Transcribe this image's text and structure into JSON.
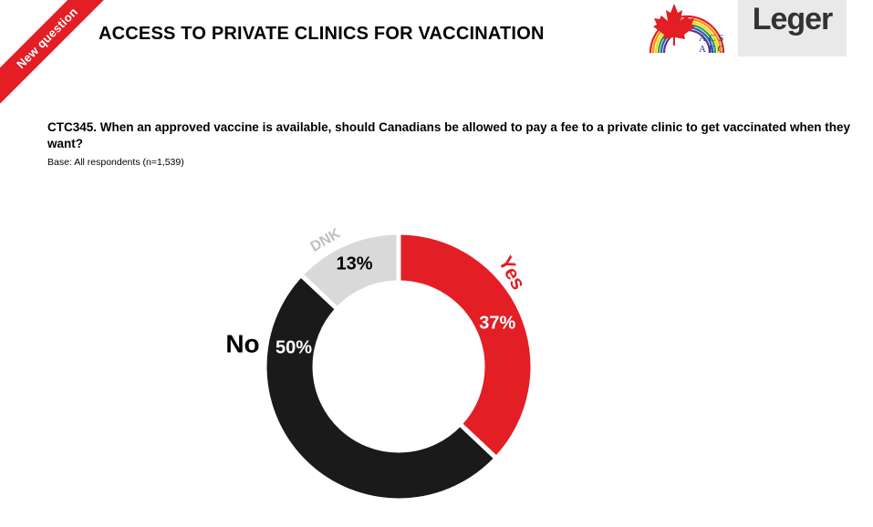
{
  "header": {
    "badge": "New question",
    "title": "ACCESS TO PRIVATE CLINICS FOR VACCINATION",
    "logo_acs": {
      "line1": "ACS",
      "line2": "AEC"
    },
    "logo_leger": "Leger"
  },
  "question": {
    "text": "CTC345. When an approved vaccine is available, should Canadians be allowed to pay a fee to a private clinic to get vaccinated when they want?",
    "base": "Base: All respondents (n=1,539)"
  },
  "chart_data": {
    "type": "pie",
    "variant": "donut",
    "categories": [
      "Yes",
      "No",
      "DNK"
    ],
    "values": [
      37,
      50,
      13
    ],
    "value_labels": [
      "37%",
      "50%",
      "13%"
    ],
    "colors": [
      "#e31e24",
      "#1a1a1a",
      "#d9d9d9"
    ]
  },
  "colors": {
    "accent": "#e31e24",
    "dark": "#1a1a1a",
    "light": "#d9d9d9"
  }
}
